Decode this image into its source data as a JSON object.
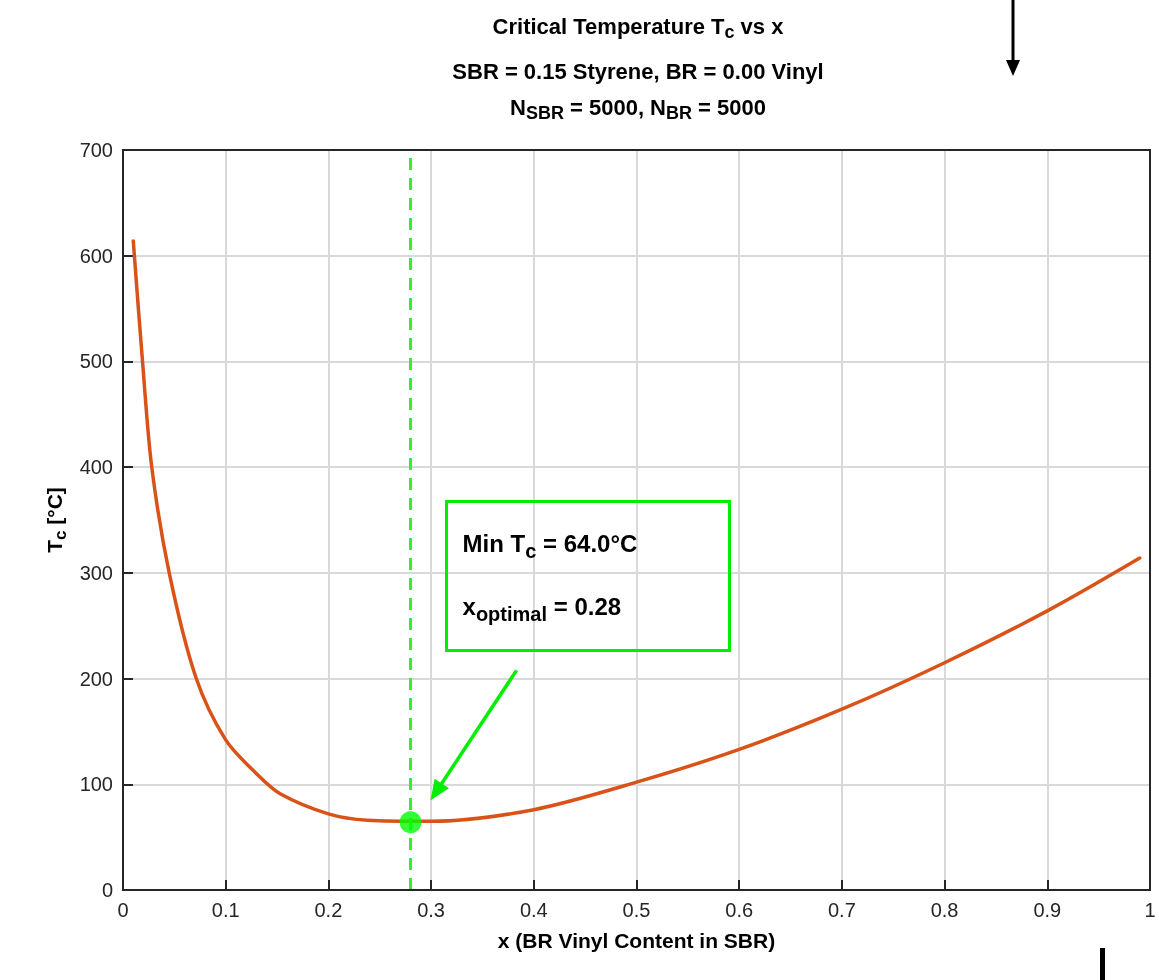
{
  "chart_data": {
    "type": "line",
    "title": "Critical Temperature T$_{c}$ vs x",
    "subtitle": "SBR = 0.15 Styrene, BR = 0.00 Vinyl\nN$_{SBR}$ = 5000, N$_{BR}$ = 5000",
    "xlabel": "x (BR Vinyl Content in SBR)",
    "ylabel": "T$_{c}$ [°C]",
    "series": [
      {
        "type": "line",
        "color": "#d95319",
        "marker": "none",
        "x": [
          0.01,
          0.019,
          0.028,
          0.045,
          0.071,
          0.1,
          0.13,
          0.153,
          0.2,
          0.238,
          0.3,
          0.4,
          0.5,
          0.6,
          0.7,
          0.8,
          0.9,
          0.99
        ],
        "values": [
          614,
          500,
          400,
          300,
          201,
          142,
          110,
          91,
          72,
          66,
          65,
          76,
          102,
          133,
          171,
          215,
          264,
          314
        ]
      },
      {
        "type": "scatter",
        "color": "#00ff00",
        "marker": "circle",
        "x": [
          0.28
        ],
        "values": [
          64
        ]
      }
    ],
    "xlim": [
      0,
      1
    ],
    "xticks": [
      0,
      0.1,
      0.2,
      0.3,
      0.4,
      0.5,
      0.6,
      0.7,
      0.8,
      0.9,
      1
    ],
    "ylim": [
      0,
      700
    ],
    "yticks": [
      0,
      100,
      200,
      300,
      400,
      500,
      600,
      700
    ],
    "grid": true,
    "line_style": "solid",
    "ref_lines": [
      {
        "axis": "x",
        "value": 0.28,
        "label": null,
        "color": "#33ee33",
        "line_style": "dashed"
      }
    ],
    "annotations": [
      "Min T$_{c}$ = 64.0°C",
      "x$_{optimal}$ = 0.28"
    ]
  }
}
